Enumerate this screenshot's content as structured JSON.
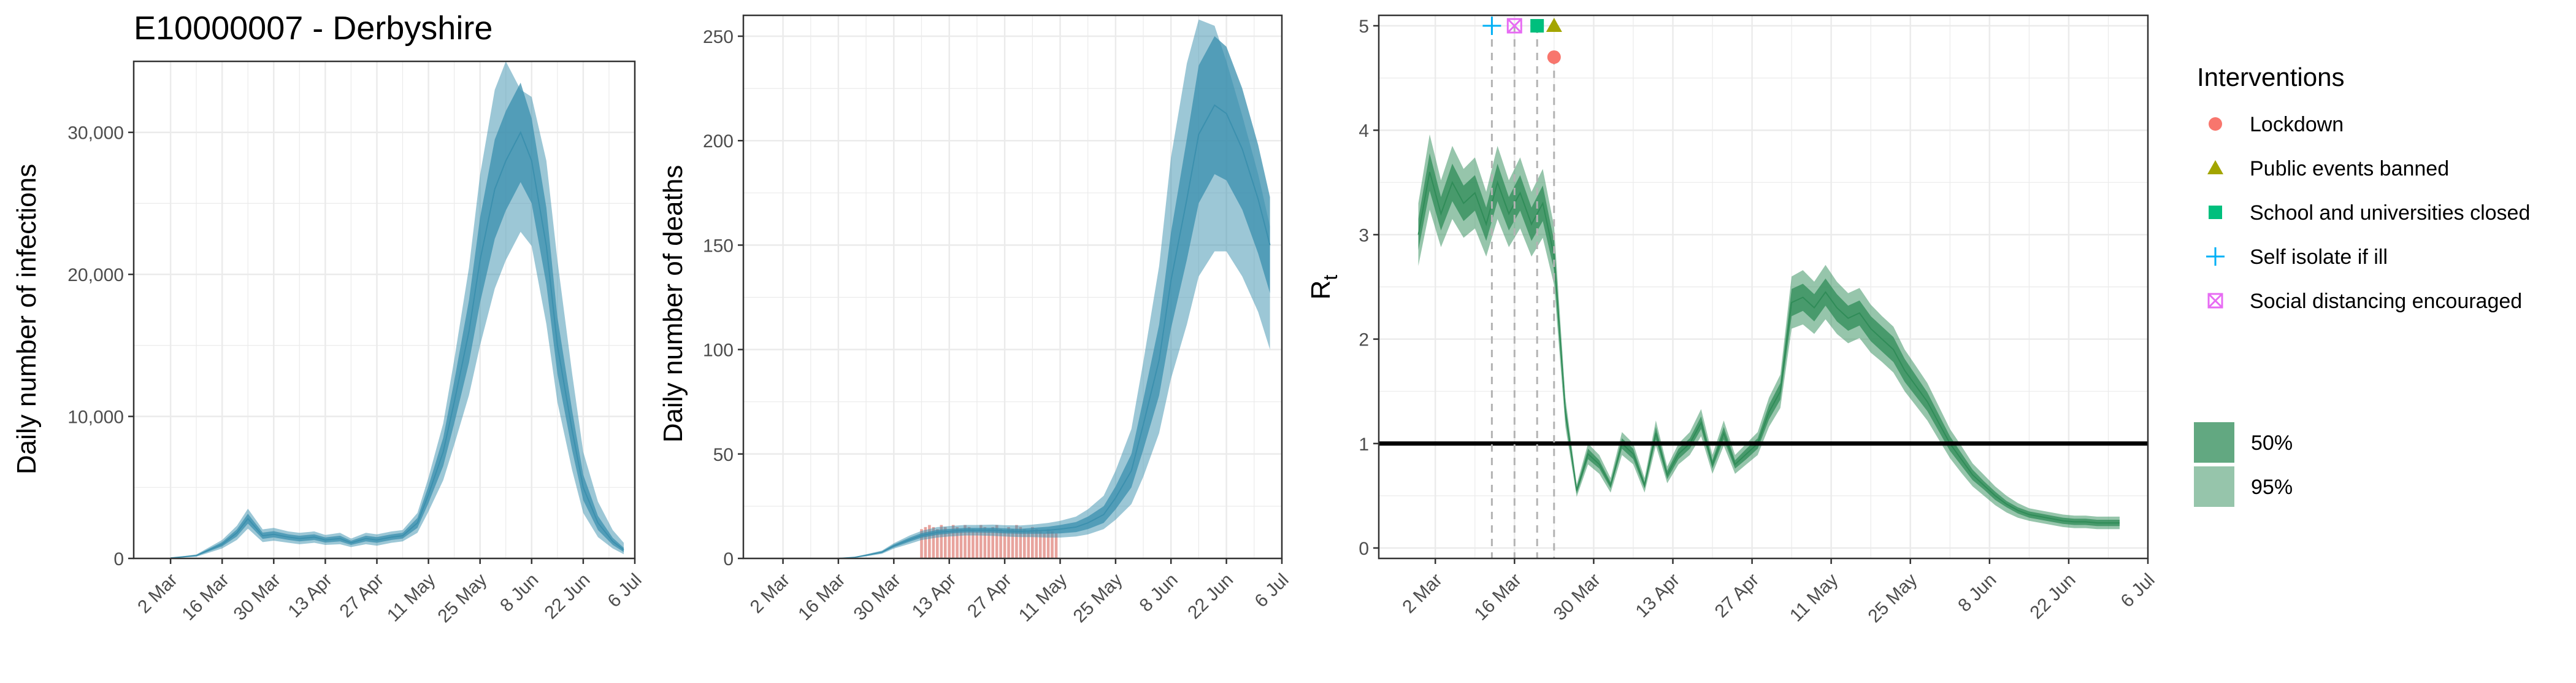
{
  "colors": {
    "infection_band": "#3a8fad",
    "rt_band": "#2e8b57",
    "reported_deaths": "#e8a39d",
    "grid": "#ebebeb",
    "lockdown": "#f8766d",
    "public_events": "#a3a500",
    "school_closed": "#00bf7d",
    "self_isolate": "#00b0f6",
    "social_distancing": "#e76bf3"
  },
  "chart_data": [
    {
      "type": "area",
      "title": "E10000007 - Derbyshire",
      "ylabel": "Daily number of infections",
      "xlabel": "",
      "x_ticks": [
        "2 Mar",
        "16 Mar",
        "30 Mar",
        "13 Apr",
        "27 Apr",
        "11 May",
        "25 May",
        "8 Jun",
        "22 Jun",
        "6 Jul"
      ],
      "y_ticks": [
        "0",
        "10,000",
        "20,000",
        "30,000"
      ],
      "xlim": [
        "2020-02-21",
        "2020-07-06"
      ],
      "ylim": [
        0,
        35000
      ],
      "grid": true,
      "series": [
        {
          "x": [
            "2020-03-02",
            "2020-03-09",
            "2020-03-16",
            "2020-03-20",
            "2020-03-23",
            "2020-03-27",
            "2020-03-30",
            "2020-04-03",
            "2020-04-06",
            "2020-04-10",
            "2020-04-13",
            "2020-04-17",
            "2020-04-20",
            "2020-04-24",
            "2020-04-27",
            "2020-05-01",
            "2020-05-04",
            "2020-05-08",
            "2020-05-11",
            "2020-05-15",
            "2020-05-18",
            "2020-05-22",
            "2020-05-25",
            "2020-05-29",
            "2020-06-01",
            "2020-06-05",
            "2020-06-08",
            "2020-06-12",
            "2020-06-15",
            "2020-06-19",
            "2020-06-22",
            "2020-06-26",
            "2020-06-30",
            "2020-07-03"
          ],
          "median": [
            30,
            200,
            1000,
            1800,
            2800,
            1600,
            1700,
            1500,
            1400,
            1500,
            1300,
            1400,
            1100,
            1400,
            1300,
            1500,
            1600,
            2500,
            4500,
            7500,
            11000,
            16000,
            21000,
            26000,
            28000,
            30000,
            28000,
            22000,
            15000,
            9000,
            5000,
            2500,
            1200,
            600
          ],
          "lower_50": [
            25,
            160,
            850,
            1550,
            2450,
            1380,
            1480,
            1300,
            1200,
            1300,
            1120,
            1200,
            950,
            1200,
            1100,
            1300,
            1400,
            2150,
            3900,
            6500,
            9500,
            13800,
            18000,
            22500,
            24500,
            26500,
            25000,
            19300,
            13000,
            7600,
            4100,
            2000,
            950,
            450
          ],
          "upper_50": [
            35,
            240,
            1150,
            2050,
            3150,
            1820,
            1920,
            1700,
            1600,
            1700,
            1480,
            1600,
            1250,
            1600,
            1500,
            1700,
            1800,
            2850,
            5100,
            8500,
            12500,
            18200,
            24000,
            29500,
            31500,
            33500,
            31000,
            24700,
            17000,
            10400,
            5900,
            3000,
            1450,
            750
          ],
          "lower_95": [
            20,
            120,
            700,
            1300,
            2100,
            1150,
            1250,
            1100,
            1000,
            1100,
            950,
            1000,
            800,
            1000,
            900,
            1100,
            1200,
            1800,
            3300,
            5500,
            8000,
            11500,
            15000,
            19000,
            21000,
            23000,
            22000,
            16500,
            11000,
            6200,
            3200,
            1500,
            700,
            300
          ],
          "upper_95": [
            40,
            280,
            1300,
            2300,
            3500,
            2050,
            2150,
            1900,
            1800,
            1900,
            1650,
            1800,
            1400,
            1800,
            1700,
            1900,
            2000,
            3200,
            5700,
            9500,
            14000,
            20500,
            27000,
            33000,
            35000,
            33000,
            32500,
            28000,
            21000,
            13000,
            7500,
            4000,
            2000,
            1100
          ]
        }
      ]
    },
    {
      "type": "area",
      "title": "",
      "ylabel": "Daily number of deaths",
      "xlabel": "",
      "x_ticks": [
        "2 Mar",
        "16 Mar",
        "30 Mar",
        "13 Apr",
        "27 Apr",
        "11 May",
        "25 May",
        "8 Jun",
        "22 Jun",
        "6 Jul"
      ],
      "y_ticks": [
        "0",
        "50",
        "100",
        "150",
        "200",
        "250"
      ],
      "xlim": [
        "2020-02-21",
        "2020-07-06"
      ],
      "ylim": [
        0,
        260
      ],
      "grid": true,
      "bars": {
        "name": "reported deaths",
        "start": "2020-04-06",
        "values": [
          14,
          15,
          16,
          15,
          14,
          16,
          15,
          13,
          16,
          15,
          14,
          16,
          15,
          14,
          13,
          16,
          15,
          14,
          15,
          16,
          14,
          13,
          15,
          14,
          16,
          15,
          14,
          13,
          15,
          14,
          13,
          12,
          14,
          13,
          12
        ]
      },
      "series": [
        {
          "x": [
            "2020-03-02",
            "2020-03-09",
            "2020-03-16",
            "2020-03-20",
            "2020-03-23",
            "2020-03-27",
            "2020-03-30",
            "2020-04-03",
            "2020-04-06",
            "2020-04-10",
            "2020-04-13",
            "2020-04-17",
            "2020-04-20",
            "2020-04-24",
            "2020-04-27",
            "2020-05-01",
            "2020-05-04",
            "2020-05-08",
            "2020-05-11",
            "2020-05-15",
            "2020-05-18",
            "2020-05-22",
            "2020-05-25",
            "2020-05-29",
            "2020-06-01",
            "2020-06-05",
            "2020-06-08",
            "2020-06-12",
            "2020-06-15",
            "2020-06-19",
            "2020-06-22",
            "2020-06-26",
            "2020-06-30",
            "2020-07-03"
          ],
          "median": [
            0,
            0,
            0,
            0.5,
            1.5,
            3,
            6,
            9,
            11,
            12.5,
            13,
            13.5,
            13.5,
            13.5,
            13.2,
            13,
            13.2,
            13.5,
            14,
            15,
            17,
            21,
            29,
            42,
            64,
            95,
            133,
            172,
            203,
            217,
            213,
            196,
            172,
            150
          ],
          "lower_50": [
            0,
            0,
            0,
            0.4,
            1.2,
            2.6,
            5.3,
            8,
            9.9,
            11.3,
            11.9,
            12.4,
            12.4,
            12.3,
            12,
            11.8,
            11.8,
            11.8,
            12,
            12.6,
            14,
            17,
            23.5,
            34,
            52,
            78,
            110,
            143,
            170,
            184,
            181,
            167,
            146,
            127
          ],
          "upper_50": [
            0,
            0,
            0,
            0.6,
            1.8,
            3.4,
            6.7,
            10,
            12.1,
            13.7,
            14.1,
            14.6,
            14.6,
            14.7,
            14.4,
            14.2,
            14.6,
            15.2,
            16,
            17.4,
            20,
            25,
            34.5,
            50,
            76,
            112,
            156,
            201,
            236,
            250,
            245,
            225,
            198,
            173
          ],
          "lower_95": [
            0,
            0,
            0,
            0.3,
            1,
            2.2,
            4.7,
            7,
            8.8,
            10,
            10.5,
            11,
            11,
            10.8,
            10.5,
            10.2,
            10.2,
            10,
            10,
            10.5,
            11.5,
            14,
            18.5,
            26,
            39,
            60,
            86,
            112,
            135,
            147,
            147,
            135,
            118,
            100
          ],
          "upper_95": [
            0,
            0,
            0,
            0.7,
            2,
            3.8,
            7.3,
            11,
            13.2,
            15,
            15.5,
            16,
            16,
            16.2,
            15.9,
            15.8,
            16.2,
            17,
            18,
            20,
            23.5,
            30,
            42,
            62,
            94,
            140,
            192,
            237,
            258,
            255,
            238,
            212,
            184,
            159
          ]
        }
      ]
    },
    {
      "type": "area",
      "title": "",
      "ylabel": "R",
      "ylabel_subscript": "t",
      "xlabel": "",
      "x_ticks": [
        "2 Mar",
        "16 Mar",
        "30 Mar",
        "13 Apr",
        "27 Apr",
        "11 May",
        "25 May",
        "8 Jun",
        "22 Jun",
        "6 Jul"
      ],
      "y_ticks": [
        "0",
        "1",
        "2",
        "3",
        "4",
        "5"
      ],
      "xlim": [
        "2020-02-21",
        "2020-07-06"
      ],
      "ylim": [
        -0.1,
        5.1
      ],
      "grid": true,
      "reference_line": 1,
      "interventions": [
        {
          "name": "Lockdown",
          "date": "2020-03-23",
          "shape": "circle",
          "color": "#f8766d",
          "y": 4.7
        },
        {
          "name": "Public events banned",
          "date": "2020-03-23",
          "shape": "triangle",
          "color": "#a3a500",
          "y": 5.0
        },
        {
          "name": "School and universities closed",
          "date": "2020-03-20",
          "shape": "square",
          "color": "#00bf7d",
          "y": 5.0
        },
        {
          "name": "Self isolate if ill",
          "date": "2020-03-12",
          "shape": "plus",
          "color": "#00b0f6",
          "y": 5.0
        },
        {
          "name": "Social distancing encouraged",
          "date": "2020-03-16",
          "shape": "boxcross",
          "color": "#e76bf3",
          "y": 5.0
        }
      ],
      "legend": {
        "title": "Interventions",
        "placement": "right",
        "band_labels": [
          "50%",
          "95%"
        ]
      },
      "series": [
        {
          "x": [
            "2020-02-28",
            "2020-03-01",
            "2020-03-03",
            "2020-03-05",
            "2020-03-07",
            "2020-03-09",
            "2020-03-11",
            "2020-03-13",
            "2020-03-15",
            "2020-03-17",
            "2020-03-19",
            "2020-03-21",
            "2020-03-23",
            "2020-03-25",
            "2020-03-27",
            "2020-03-29",
            "2020-03-31",
            "2020-04-02",
            "2020-04-04",
            "2020-04-06",
            "2020-04-08",
            "2020-04-10",
            "2020-04-12",
            "2020-04-14",
            "2020-04-16",
            "2020-04-18",
            "2020-04-20",
            "2020-04-22",
            "2020-04-24",
            "2020-04-26",
            "2020-04-28",
            "2020-04-30",
            "2020-05-02",
            "2020-05-04",
            "2020-05-06",
            "2020-05-08",
            "2020-05-10",
            "2020-05-12",
            "2020-05-14",
            "2020-05-16",
            "2020-05-18",
            "2020-05-20",
            "2020-05-22",
            "2020-05-24",
            "2020-05-26",
            "2020-05-28",
            "2020-05-30",
            "2020-06-01",
            "2020-06-03",
            "2020-06-05",
            "2020-06-07",
            "2020-06-09",
            "2020-06-11",
            "2020-06-13",
            "2020-06-15",
            "2020-06-17",
            "2020-06-19",
            "2020-06-21",
            "2020-06-23",
            "2020-06-25",
            "2020-06-27",
            "2020-06-29",
            "2020-07-01"
          ],
          "median": [
            3.0,
            3.6,
            3.2,
            3.5,
            3.3,
            3.4,
            3.1,
            3.5,
            3.2,
            3.4,
            3.1,
            3.3,
            2.8,
            1.3,
            0.55,
            0.9,
            0.8,
            0.6,
            1.0,
            0.9,
            0.6,
            1.1,
            0.7,
            0.9,
            1.0,
            1.2,
            0.8,
            1.1,
            0.8,
            0.9,
            1.0,
            1.3,
            1.5,
            2.35,
            2.4,
            2.3,
            2.45,
            2.3,
            2.2,
            2.25,
            2.1,
            2.0,
            1.9,
            1.7,
            1.55,
            1.4,
            1.2,
            1.0,
            0.85,
            0.7,
            0.6,
            0.5,
            0.42,
            0.36,
            0.32,
            0.3,
            0.28,
            0.26,
            0.25,
            0.25,
            0.24,
            0.24,
            0.24
          ],
          "lower_50": [
            2.85,
            3.42,
            3.04,
            3.32,
            3.13,
            3.23,
            2.94,
            3.32,
            3.04,
            3.23,
            2.94,
            3.13,
            2.66,
            1.23,
            0.52,
            0.85,
            0.76,
            0.57,
            0.95,
            0.85,
            0.57,
            1.04,
            0.66,
            0.85,
            0.95,
            1.14,
            0.76,
            1.04,
            0.76,
            0.85,
            0.95,
            1.23,
            1.42,
            2.22,
            2.27,
            2.17,
            2.32,
            2.17,
            2.08,
            2.13,
            1.98,
            1.88,
            1.78,
            1.59,
            1.45,
            1.31,
            1.12,
            0.93,
            0.79,
            0.65,
            0.56,
            0.46,
            0.39,
            0.33,
            0.29,
            0.27,
            0.25,
            0.23,
            0.22,
            0.22,
            0.21,
            0.21,
            0.21
          ],
          "upper_50": [
            3.15,
            3.78,
            3.36,
            3.68,
            3.47,
            3.57,
            3.26,
            3.68,
            3.36,
            3.57,
            3.26,
            3.47,
            2.94,
            1.37,
            0.58,
            0.95,
            0.84,
            0.63,
            1.05,
            0.95,
            0.63,
            1.16,
            0.74,
            0.95,
            1.05,
            1.26,
            0.84,
            1.16,
            0.84,
            0.95,
            1.05,
            1.37,
            1.58,
            2.48,
            2.53,
            2.43,
            2.58,
            2.43,
            2.32,
            2.37,
            2.22,
            2.12,
            2.02,
            1.81,
            1.65,
            1.49,
            1.28,
            1.07,
            0.91,
            0.75,
            0.64,
            0.54,
            0.45,
            0.39,
            0.35,
            0.33,
            0.31,
            0.29,
            0.28,
            0.28,
            0.27,
            0.27,
            0.27
          ],
          "lower_95": [
            2.7,
            3.24,
            2.88,
            3.15,
            2.97,
            3.06,
            2.79,
            3.15,
            2.88,
            3.06,
            2.79,
            2.97,
            2.52,
            1.16,
            0.49,
            0.8,
            0.71,
            0.53,
            0.89,
            0.8,
            0.53,
            0.98,
            0.62,
            0.8,
            0.89,
            1.07,
            0.71,
            0.98,
            0.71,
            0.8,
            0.89,
            1.16,
            1.34,
            2.1,
            2.14,
            2.05,
            2.19,
            2.05,
            1.96,
            2.01,
            1.87,
            1.78,
            1.68,
            1.5,
            1.36,
            1.22,
            1.04,
            0.86,
            0.72,
            0.59,
            0.5,
            0.41,
            0.34,
            0.29,
            0.26,
            0.24,
            0.22,
            0.2,
            0.19,
            0.19,
            0.18,
            0.18,
            0.18
          ],
          "upper_95": [
            3.3,
            3.96,
            3.52,
            3.85,
            3.63,
            3.74,
            3.41,
            3.85,
            3.52,
            3.74,
            3.41,
            3.63,
            3.08,
            1.44,
            0.61,
            1.0,
            0.89,
            0.67,
            1.11,
            1.0,
            0.67,
            1.22,
            0.78,
            1.0,
            1.11,
            1.33,
            0.89,
            1.22,
            0.89,
            1.0,
            1.11,
            1.44,
            1.66,
            2.6,
            2.66,
            2.55,
            2.71,
            2.55,
            2.44,
            2.49,
            2.33,
            2.22,
            2.12,
            1.9,
            1.74,
            1.58,
            1.36,
            1.14,
            0.98,
            0.81,
            0.7,
            0.59,
            0.5,
            0.43,
            0.38,
            0.36,
            0.34,
            0.32,
            0.31,
            0.31,
            0.3,
            0.3,
            0.3
          ]
        }
      ]
    }
  ]
}
